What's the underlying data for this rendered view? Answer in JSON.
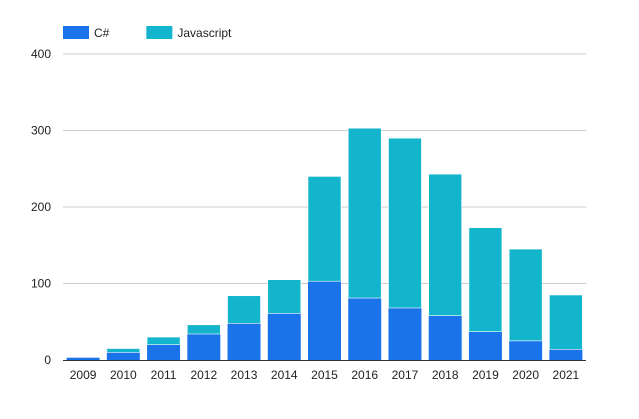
{
  "chart_data": {
    "type": "bar",
    "stacked": true,
    "title": "",
    "xlabel": "",
    "ylabel": "",
    "categories": [
      "2009",
      "2010",
      "2011",
      "2012",
      "2013",
      "2014",
      "2015",
      "2016",
      "2017",
      "2018",
      "2019",
      "2020",
      "2021"
    ],
    "series": [
      {
        "name": "C#",
        "color": "#1a73e8",
        "values": [
          3,
          10,
          20,
          34,
          48,
          61,
          103,
          81,
          68,
          58,
          37,
          25,
          14
        ]
      },
      {
        "name": "Javascript",
        "color": "#12b5cb",
        "values": [
          0,
          5,
          10,
          12,
          36,
          44,
          137,
          222,
          222,
          185,
          136,
          120,
          71
        ]
      }
    ],
    "ylim": [
      0,
      400
    ],
    "yticks": [
      0,
      100,
      200,
      300,
      400
    ],
    "grid": true,
    "legend_position": "top-left"
  }
}
